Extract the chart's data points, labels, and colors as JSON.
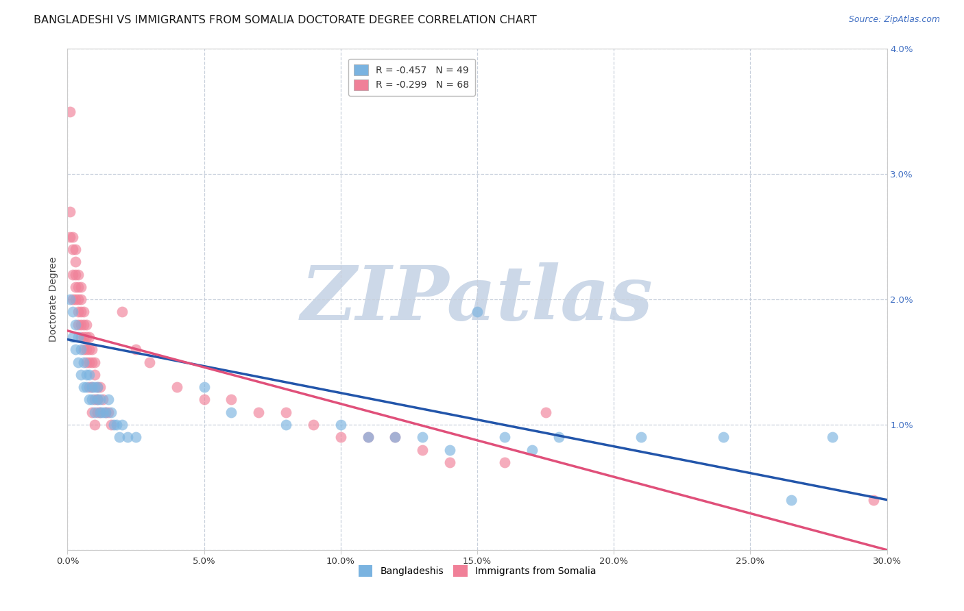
{
  "title": "BANGLADESHI VS IMMIGRANTS FROM SOMALIA DOCTORATE DEGREE CORRELATION CHART",
  "source": "Source: ZipAtlas.com",
  "ylabel": "Doctorate Degree",
  "xlim": [
    0.0,
    0.3
  ],
  "ylim": [
    0.0,
    0.04
  ],
  "xtick_vals": [
    0.0,
    0.05,
    0.1,
    0.15,
    0.2,
    0.25,
    0.3
  ],
  "xtick_labels": [
    "0.0%",
    "5.0%",
    "10.0%",
    "15.0%",
    "20.0%",
    "25.0%",
    "30.0%"
  ],
  "ytick_vals": [
    0.0,
    0.01,
    0.02,
    0.03,
    0.04
  ],
  "right_ytick_labels": [
    "",
    "1.0%",
    "2.0%",
    "3.0%",
    "4.0%"
  ],
  "legend_r1": "R = -0.457   N = 49",
  "legend_r2": "R = -0.299   N = 68",
  "legend_label1": "Bangladeshis",
  "legend_label2": "Immigrants from Somalia",
  "blue_scatter": [
    [
      0.001,
      0.02
    ],
    [
      0.002,
      0.019
    ],
    [
      0.002,
      0.017
    ],
    [
      0.003,
      0.018
    ],
    [
      0.003,
      0.016
    ],
    [
      0.004,
      0.017
    ],
    [
      0.004,
      0.015
    ],
    [
      0.005,
      0.016
    ],
    [
      0.005,
      0.014
    ],
    [
      0.006,
      0.015
    ],
    [
      0.006,
      0.013
    ],
    [
      0.007,
      0.014
    ],
    [
      0.007,
      0.013
    ],
    [
      0.008,
      0.014
    ],
    [
      0.008,
      0.012
    ],
    [
      0.009,
      0.013
    ],
    [
      0.009,
      0.012
    ],
    [
      0.01,
      0.013
    ],
    [
      0.01,
      0.011
    ],
    [
      0.011,
      0.013
    ],
    [
      0.011,
      0.012
    ],
    [
      0.012,
      0.012
    ],
    [
      0.012,
      0.011
    ],
    [
      0.013,
      0.011
    ],
    [
      0.014,
      0.011
    ],
    [
      0.015,
      0.012
    ],
    [
      0.016,
      0.011
    ],
    [
      0.017,
      0.01
    ],
    [
      0.018,
      0.01
    ],
    [
      0.019,
      0.009
    ],
    [
      0.02,
      0.01
    ],
    [
      0.022,
      0.009
    ],
    [
      0.025,
      0.009
    ],
    [
      0.05,
      0.013
    ],
    [
      0.06,
      0.011
    ],
    [
      0.08,
      0.01
    ],
    [
      0.1,
      0.01
    ],
    [
      0.11,
      0.009
    ],
    [
      0.12,
      0.009
    ],
    [
      0.13,
      0.009
    ],
    [
      0.14,
      0.008
    ],
    [
      0.15,
      0.019
    ],
    [
      0.16,
      0.009
    ],
    [
      0.17,
      0.008
    ],
    [
      0.18,
      0.009
    ],
    [
      0.21,
      0.009
    ],
    [
      0.24,
      0.009
    ],
    [
      0.265,
      0.004
    ],
    [
      0.28,
      0.009
    ]
  ],
  "pink_scatter": [
    [
      0.001,
      0.035
    ],
    [
      0.001,
      0.027
    ],
    [
      0.001,
      0.025
    ],
    [
      0.002,
      0.025
    ],
    [
      0.002,
      0.024
    ],
    [
      0.002,
      0.022
    ],
    [
      0.002,
      0.02
    ],
    [
      0.003,
      0.024
    ],
    [
      0.003,
      0.023
    ],
    [
      0.003,
      0.022
    ],
    [
      0.003,
      0.021
    ],
    [
      0.003,
      0.02
    ],
    [
      0.004,
      0.022
    ],
    [
      0.004,
      0.021
    ],
    [
      0.004,
      0.02
    ],
    [
      0.004,
      0.019
    ],
    [
      0.004,
      0.018
    ],
    [
      0.005,
      0.021
    ],
    [
      0.005,
      0.02
    ],
    [
      0.005,
      0.019
    ],
    [
      0.005,
      0.018
    ],
    [
      0.005,
      0.017
    ],
    [
      0.006,
      0.019
    ],
    [
      0.006,
      0.018
    ],
    [
      0.006,
      0.017
    ],
    [
      0.006,
      0.016
    ],
    [
      0.007,
      0.018
    ],
    [
      0.007,
      0.017
    ],
    [
      0.007,
      0.016
    ],
    [
      0.007,
      0.015
    ],
    [
      0.008,
      0.017
    ],
    [
      0.008,
      0.016
    ],
    [
      0.008,
      0.015
    ],
    [
      0.008,
      0.013
    ],
    [
      0.009,
      0.016
    ],
    [
      0.009,
      0.015
    ],
    [
      0.009,
      0.013
    ],
    [
      0.009,
      0.011
    ],
    [
      0.01,
      0.015
    ],
    [
      0.01,
      0.014
    ],
    [
      0.01,
      0.012
    ],
    [
      0.01,
      0.01
    ],
    [
      0.011,
      0.013
    ],
    [
      0.011,
      0.012
    ],
    [
      0.011,
      0.011
    ],
    [
      0.012,
      0.013
    ],
    [
      0.012,
      0.011
    ],
    [
      0.013,
      0.012
    ],
    [
      0.014,
      0.011
    ],
    [
      0.015,
      0.011
    ],
    [
      0.016,
      0.01
    ],
    [
      0.02,
      0.019
    ],
    [
      0.025,
      0.016
    ],
    [
      0.03,
      0.015
    ],
    [
      0.04,
      0.013
    ],
    [
      0.05,
      0.012
    ],
    [
      0.06,
      0.012
    ],
    [
      0.07,
      0.011
    ],
    [
      0.08,
      0.011
    ],
    [
      0.09,
      0.01
    ],
    [
      0.1,
      0.009
    ],
    [
      0.11,
      0.009
    ],
    [
      0.12,
      0.009
    ],
    [
      0.13,
      0.008
    ],
    [
      0.14,
      0.007
    ],
    [
      0.16,
      0.007
    ],
    [
      0.175,
      0.011
    ],
    [
      0.295,
      0.004
    ]
  ],
  "blue_line_x": [
    0.0,
    0.3
  ],
  "blue_line_y": [
    0.0168,
    0.004
  ],
  "pink_line_x": [
    0.0,
    0.3
  ],
  "pink_line_y": [
    0.0175,
    0.0
  ],
  "scatter_color_blue": "#7ab3e0",
  "scatter_color_pink": "#f08098",
  "line_color_blue": "#2255aa",
  "line_color_pink": "#e0507a",
  "background_color": "#ffffff",
  "grid_color": "#c8d0dc",
  "watermark_text": "ZIPatlas",
  "watermark_color": "#ccd8e8",
  "title_fontsize": 11.5,
  "source_fontsize": 9,
  "axis_label_fontsize": 10,
  "tick_fontsize": 9.5,
  "legend_fontsize": 10
}
